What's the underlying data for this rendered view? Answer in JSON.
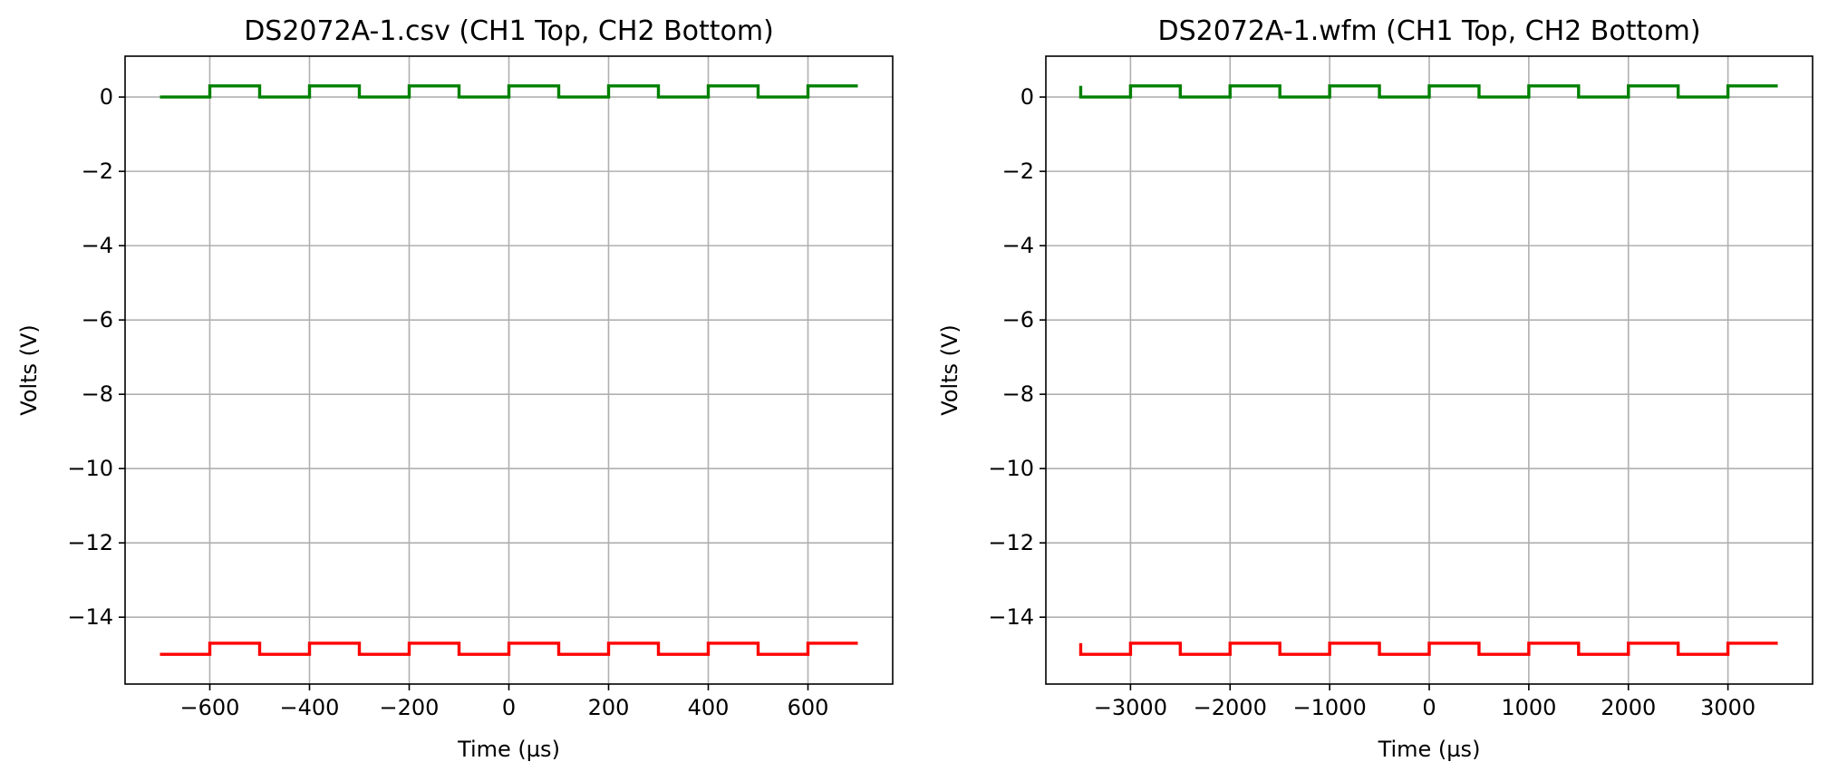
{
  "chart_data": [
    {
      "type": "line",
      "title": "DS2072A-1.csv (CH1 Top, CH2 Bottom)",
      "xlabel": "Time (µs)",
      "ylabel": "Volts (V)",
      "xlim": [
        -770,
        770
      ],
      "ylim": [
        -15.8,
        1.1
      ],
      "grid": true,
      "xticks": [
        -600,
        -400,
        -200,
        0,
        200,
        400,
        600
      ],
      "xtick_labels": [
        "−600",
        "−400",
        "−200",
        "0",
        "200",
        "400",
        "600"
      ],
      "yticks": [
        0,
        -2,
        -4,
        -6,
        -8,
        -10,
        -12,
        -14
      ],
      "ytick_labels": [
        "0",
        "−2",
        "−4",
        "−6",
        "−8",
        "−10",
        "−12",
        "−14"
      ],
      "series": [
        {
          "color": "#008000",
          "low": 0.0,
          "high": 0.3,
          "x_start": -700,
          "x_end": 700,
          "period": 200,
          "edge_offset": 0,
          "initial_state": "low"
        },
        {
          "color": "#ff0000",
          "low": -15.0,
          "high": -14.7,
          "x_start": -700,
          "x_end": 700,
          "period": 200,
          "edge_offset": 0,
          "initial_state": "low"
        }
      ]
    },
    {
      "type": "line",
      "title": "DS2072A-1.wfm (CH1 Top, CH2 Bottom)",
      "xlabel": "Time (µs)",
      "ylabel": "Volts (V)",
      "xlim": [
        -3850,
        3850
      ],
      "ylim": [
        -15.8,
        1.1
      ],
      "grid": true,
      "xticks": [
        -3000,
        -2000,
        -1000,
        0,
        1000,
        2000,
        3000
      ],
      "xtick_labels": [
        "−3000",
        "−2000",
        "−1000",
        "0",
        "1000",
        "2000",
        "3000"
      ],
      "yticks": [
        0,
        -2,
        -4,
        -6,
        -8,
        -10,
        -12,
        -14
      ],
      "ytick_labels": [
        "0",
        "−2",
        "−4",
        "−6",
        "−8",
        "−10",
        "−12",
        "−14"
      ],
      "series": [
        {
          "color": "#008000",
          "low": 0.0,
          "high": 0.3,
          "x_start": -3500,
          "x_end": 3500,
          "period": 1000,
          "edge_offset": 500,
          "initial_state": "high_spike"
        },
        {
          "color": "#ff0000",
          "low": -15.0,
          "high": -14.7,
          "x_start": -3500,
          "x_end": 3500,
          "period": 1000,
          "edge_offset": 500,
          "initial_state": "high_spike"
        }
      ]
    }
  ]
}
